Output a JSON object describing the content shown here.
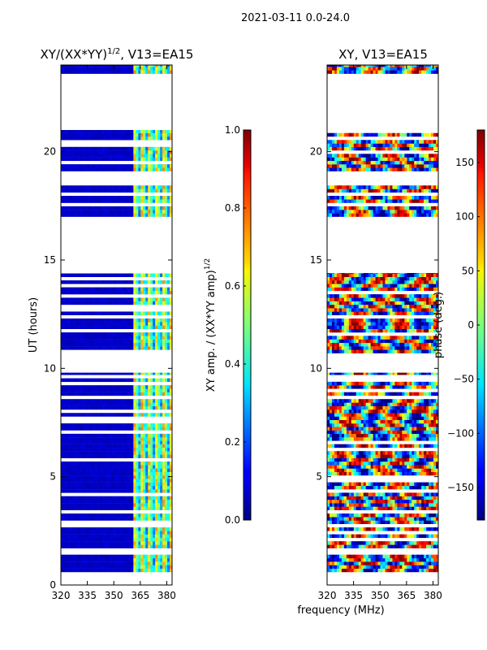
{
  "figure": {
    "suptitle": "2021-03-11 0.0-24.0",
    "shared_xlabel": "frequency (MHz)"
  },
  "chart_data": [
    {
      "type": "heatmap",
      "title": "XY/(XX*YY)^{1/2}, V13=EA15",
      "title_main": "XY/(XX*YY)",
      "title_exp": "1/2",
      "title_tail": ", V13=EA15",
      "xlabel": "frequency (MHz)",
      "ylabel": "UT (hours)",
      "xlim": [
        320,
        383
      ],
      "ylim": [
        0,
        24
      ],
      "xticks": [
        320,
        335,
        350,
        365,
        380
      ],
      "yticks": [
        0,
        5,
        10,
        15,
        20
      ],
      "colormap": "jet",
      "colorbar": {
        "label": "XY amp. / (XX*YY amp)^{1/2}",
        "label_main": "XY amp. / (XX*YY amp)",
        "label_exp": "1/2",
        "range": [
          0.0,
          1.0
        ],
        "ticks": [
          "0.0",
          "0.2",
          "0.4",
          "0.6",
          "0.8",
          "1.0"
        ]
      },
      "data_time_ranges_hours": [
        [
          0.6,
          1.4
        ],
        [
          1.7,
          9.8
        ],
        [
          10.7,
          14.4
        ],
        [
          17.0,
          18.6
        ],
        [
          19.1,
          21.0
        ],
        [
          23.6,
          24.0
        ]
      ],
      "bright_band_mhz": [
        360,
        383
      ]
    },
    {
      "type": "heatmap",
      "title": "XY, V13=EA15",
      "xlabel": "frequency (MHz)",
      "ylabel": "",
      "xlim": [
        320,
        383
      ],
      "ylim": [
        0,
        24
      ],
      "xticks": [
        320,
        335,
        350,
        365,
        380
      ],
      "yticks": [
        5,
        10,
        15,
        20
      ],
      "colormap": "jet",
      "colorbar": {
        "label": "phase (deg.)",
        "range": [
          -180,
          180
        ],
        "ticks": [
          "−150",
          "−100",
          "−50",
          "0",
          "50",
          "100",
          "150"
        ]
      },
      "data_time_ranges_hours": [
        [
          0.6,
          1.4
        ],
        [
          1.7,
          9.8
        ],
        [
          10.7,
          14.4
        ],
        [
          17.0,
          18.6
        ],
        [
          19.1,
          21.0
        ],
        [
          23.6,
          24.0
        ]
      ]
    }
  ]
}
